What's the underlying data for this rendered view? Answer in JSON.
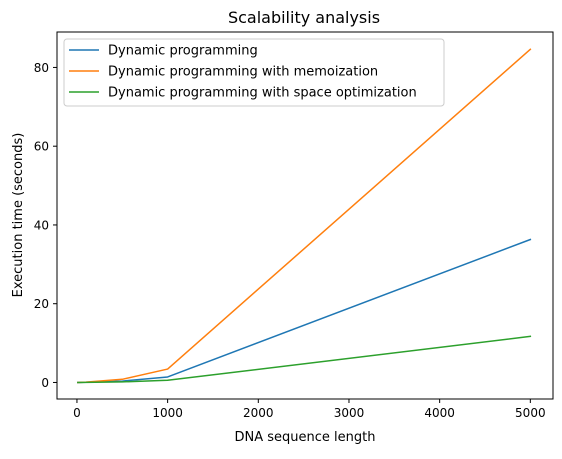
{
  "chart_data": {
    "type": "line",
    "title": "Scalability analysis",
    "xlabel": "DNA sequence length",
    "ylabel": "Execution time (seconds)",
    "x": [
      10,
      100,
      500,
      1000,
      5000
    ],
    "xlim": [
      -220,
      5250
    ],
    "ylim": [
      -4.2,
      89
    ],
    "xticks": [
      0,
      1000,
      2000,
      3000,
      4000,
      5000
    ],
    "yticks": [
      0,
      20,
      40,
      60,
      80
    ],
    "grid": false,
    "legend_position": "upper-left",
    "series": [
      {
        "name": "Dynamic programming",
        "color": "#1f77b4",
        "values": [
          0.0,
          0.05,
          0.35,
          1.4,
          36.3
        ]
      },
      {
        "name": "Dynamic programming with memoization",
        "color": "#ff7f0e",
        "values": [
          0.0,
          0.08,
          0.8,
          3.4,
          84.6
        ]
      },
      {
        "name": "Dynamic programming with space optimization",
        "color": "#2ca02c",
        "values": [
          0.0,
          0.03,
          0.15,
          0.55,
          11.7
        ]
      }
    ]
  }
}
